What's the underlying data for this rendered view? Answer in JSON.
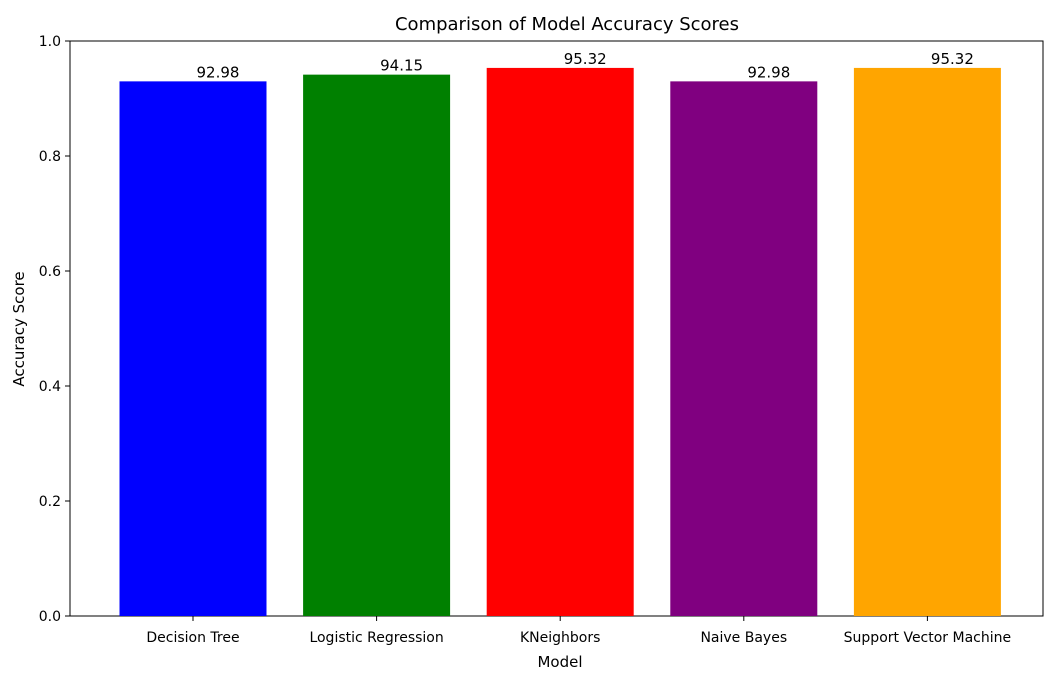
{
  "chart_data": {
    "type": "bar",
    "title": "Comparison of Model Accuracy Scores",
    "xlabel": "Model",
    "ylabel": "Accuracy Score",
    "ylim": [
      0,
      1.0
    ],
    "yticks": [
      0.0,
      0.2,
      0.4,
      0.6,
      0.8,
      1.0
    ],
    "ytick_labels": [
      "0.0",
      "0.2",
      "0.4",
      "0.6",
      "0.8",
      "1.0"
    ],
    "grid": false,
    "categories": [
      "Decision Tree",
      "Logistic Regression",
      "KNeighbors",
      "Naive Bayes",
      "Support Vector Machine"
    ],
    "values": [
      0.9298,
      0.9415,
      0.9532,
      0.9298,
      0.9532
    ],
    "data_labels": [
      "92.98",
      "94.15",
      "95.32",
      "92.98",
      "95.32"
    ],
    "colors": [
      "#0000ff",
      "#008000",
      "#ff0000",
      "#800080",
      "#ffa500"
    ]
  }
}
